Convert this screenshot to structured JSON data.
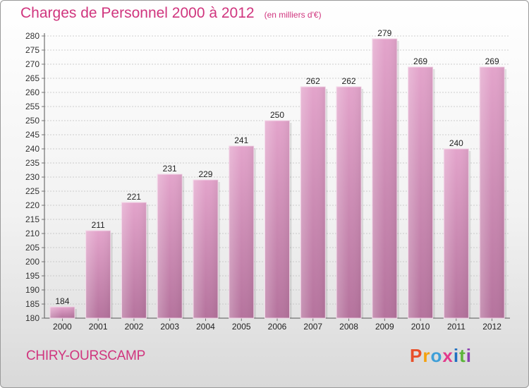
{
  "header": {
    "title": "Charges de Personnel 2000 à 2012",
    "subtitle": "(en milliers d'€)"
  },
  "footer": {
    "commune": "CHIRY-OURSCAMP",
    "logo_text": "Proxiti",
    "logo_colors": [
      "#e8502a",
      "#f4a10e",
      "#3f9fd8",
      "#e23a8c",
      "#1e6fc0",
      "#5cb43a",
      "#8c3fb0"
    ]
  },
  "colors": {
    "bar_top": "#e3a4cb",
    "bar_bottom": "#b5739d",
    "title": "#d0357e",
    "grid": "#bfbfbf"
  },
  "chart_data": {
    "type": "bar",
    "title": "Charges de Personnel 2000 à 2012",
    "subtitle": "(en milliers d'€)",
    "categories": [
      "2000",
      "2001",
      "2002",
      "2003",
      "2004",
      "2005",
      "2006",
      "2007",
      "2008",
      "2009",
      "2010",
      "2011",
      "2012"
    ],
    "values": [
      184,
      211,
      221,
      231,
      229,
      241,
      250,
      262,
      262,
      279,
      269,
      240,
      269
    ],
    "ylim": [
      180,
      280
    ],
    "yticks": [
      180,
      185,
      190,
      195,
      200,
      205,
      210,
      215,
      220,
      225,
      230,
      235,
      240,
      245,
      250,
      255,
      260,
      265,
      270,
      275,
      280
    ],
    "grid": true,
    "data_labels": true
  }
}
